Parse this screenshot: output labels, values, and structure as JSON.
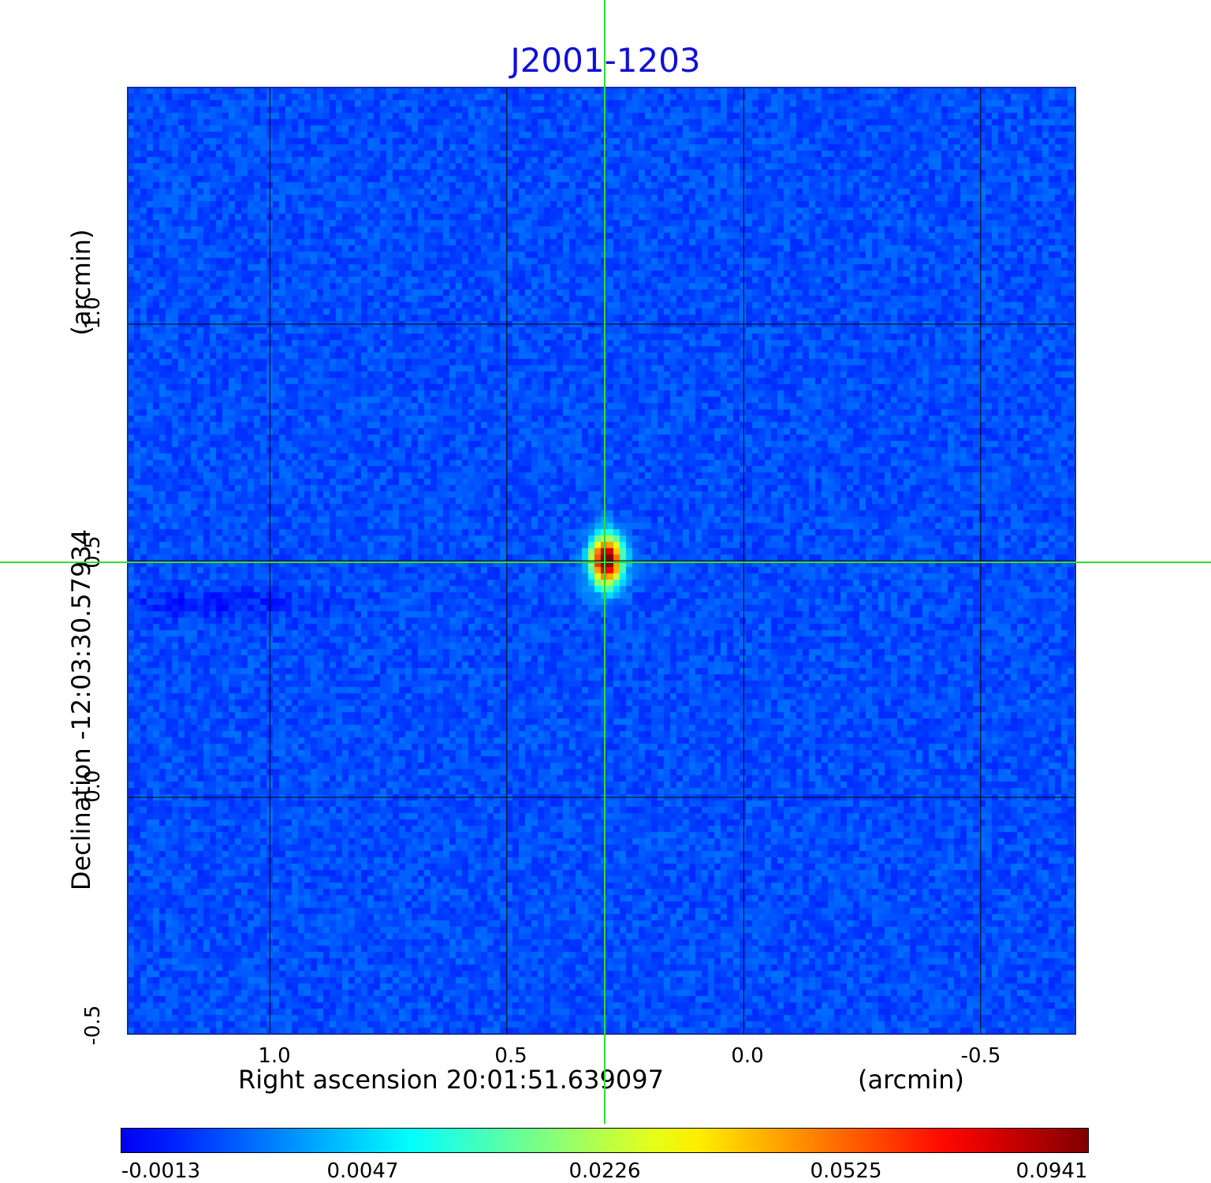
{
  "chart_data": {
    "type": "heatmap",
    "title": "J2001-1203",
    "xlabel": "Right ascension  20:01:51.639097",
    "xlabel_unit": "(arcmin)",
    "ylabel": "Declination  -12:03:30.57934",
    "ylabel_unit": "(arcmin)",
    "xlim": [
      1.3,
      -0.7
    ],
    "ylim": [
      -0.5,
      1.5
    ],
    "x_ticks": [
      "1.0",
      "0.5",
      "0.0",
      "-0.5"
    ],
    "y_ticks": [
      "-0.5",
      "0.0",
      "0.5",
      "1.0"
    ],
    "grid": true,
    "source_peak": {
      "x": 0.29,
      "y": 0.5,
      "value": 0.0941
    },
    "crosshair": {
      "x": 0.29,
      "y": 0.5
    },
    "colorbar": {
      "colormap": "jet",
      "tick_labels": [
        "-0.0013",
        "0.0047",
        "0.0226",
        "0.0525",
        "0.0941"
      ],
      "min": -0.0013,
      "max": 0.0941
    }
  },
  "colors": {
    "title": "#1010d8",
    "crosshair": "#33dd33",
    "background_map": "#1a4cf0"
  }
}
